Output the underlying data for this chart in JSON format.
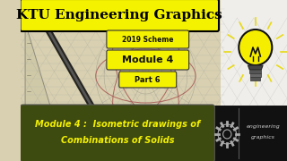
{
  "title": "KTU Engineering Graphics",
  "scheme_label": "2019 Scheme",
  "module_label": "Module 4",
  "part_label": "Part 6",
  "bottom_text_line1": "Module 4 :  Isometric drawings of",
  "bottom_text_line2": "Combinations of Solids",
  "bg_left_color": "#d8d0b0",
  "bg_right_color": "#f0eeea",
  "title_bg": "#f5f200",
  "title_color": "#000000",
  "scheme_box_color": "#f5f200",
  "module_box_color": "#f5f200",
  "part_box_color": "#f5f200",
  "bottom_bar_color": "#3d4a10",
  "bottom_text_color": "#f5f200",
  "logo_box_color": "#111111",
  "bulb_yellow": "#f5ee00",
  "bulb_outline": "#111111",
  "bulb_base_color": "#444444",
  "ray_color": "#e8d800",
  "line_color": "#aaaaaa",
  "red_line_color": "#a04040"
}
